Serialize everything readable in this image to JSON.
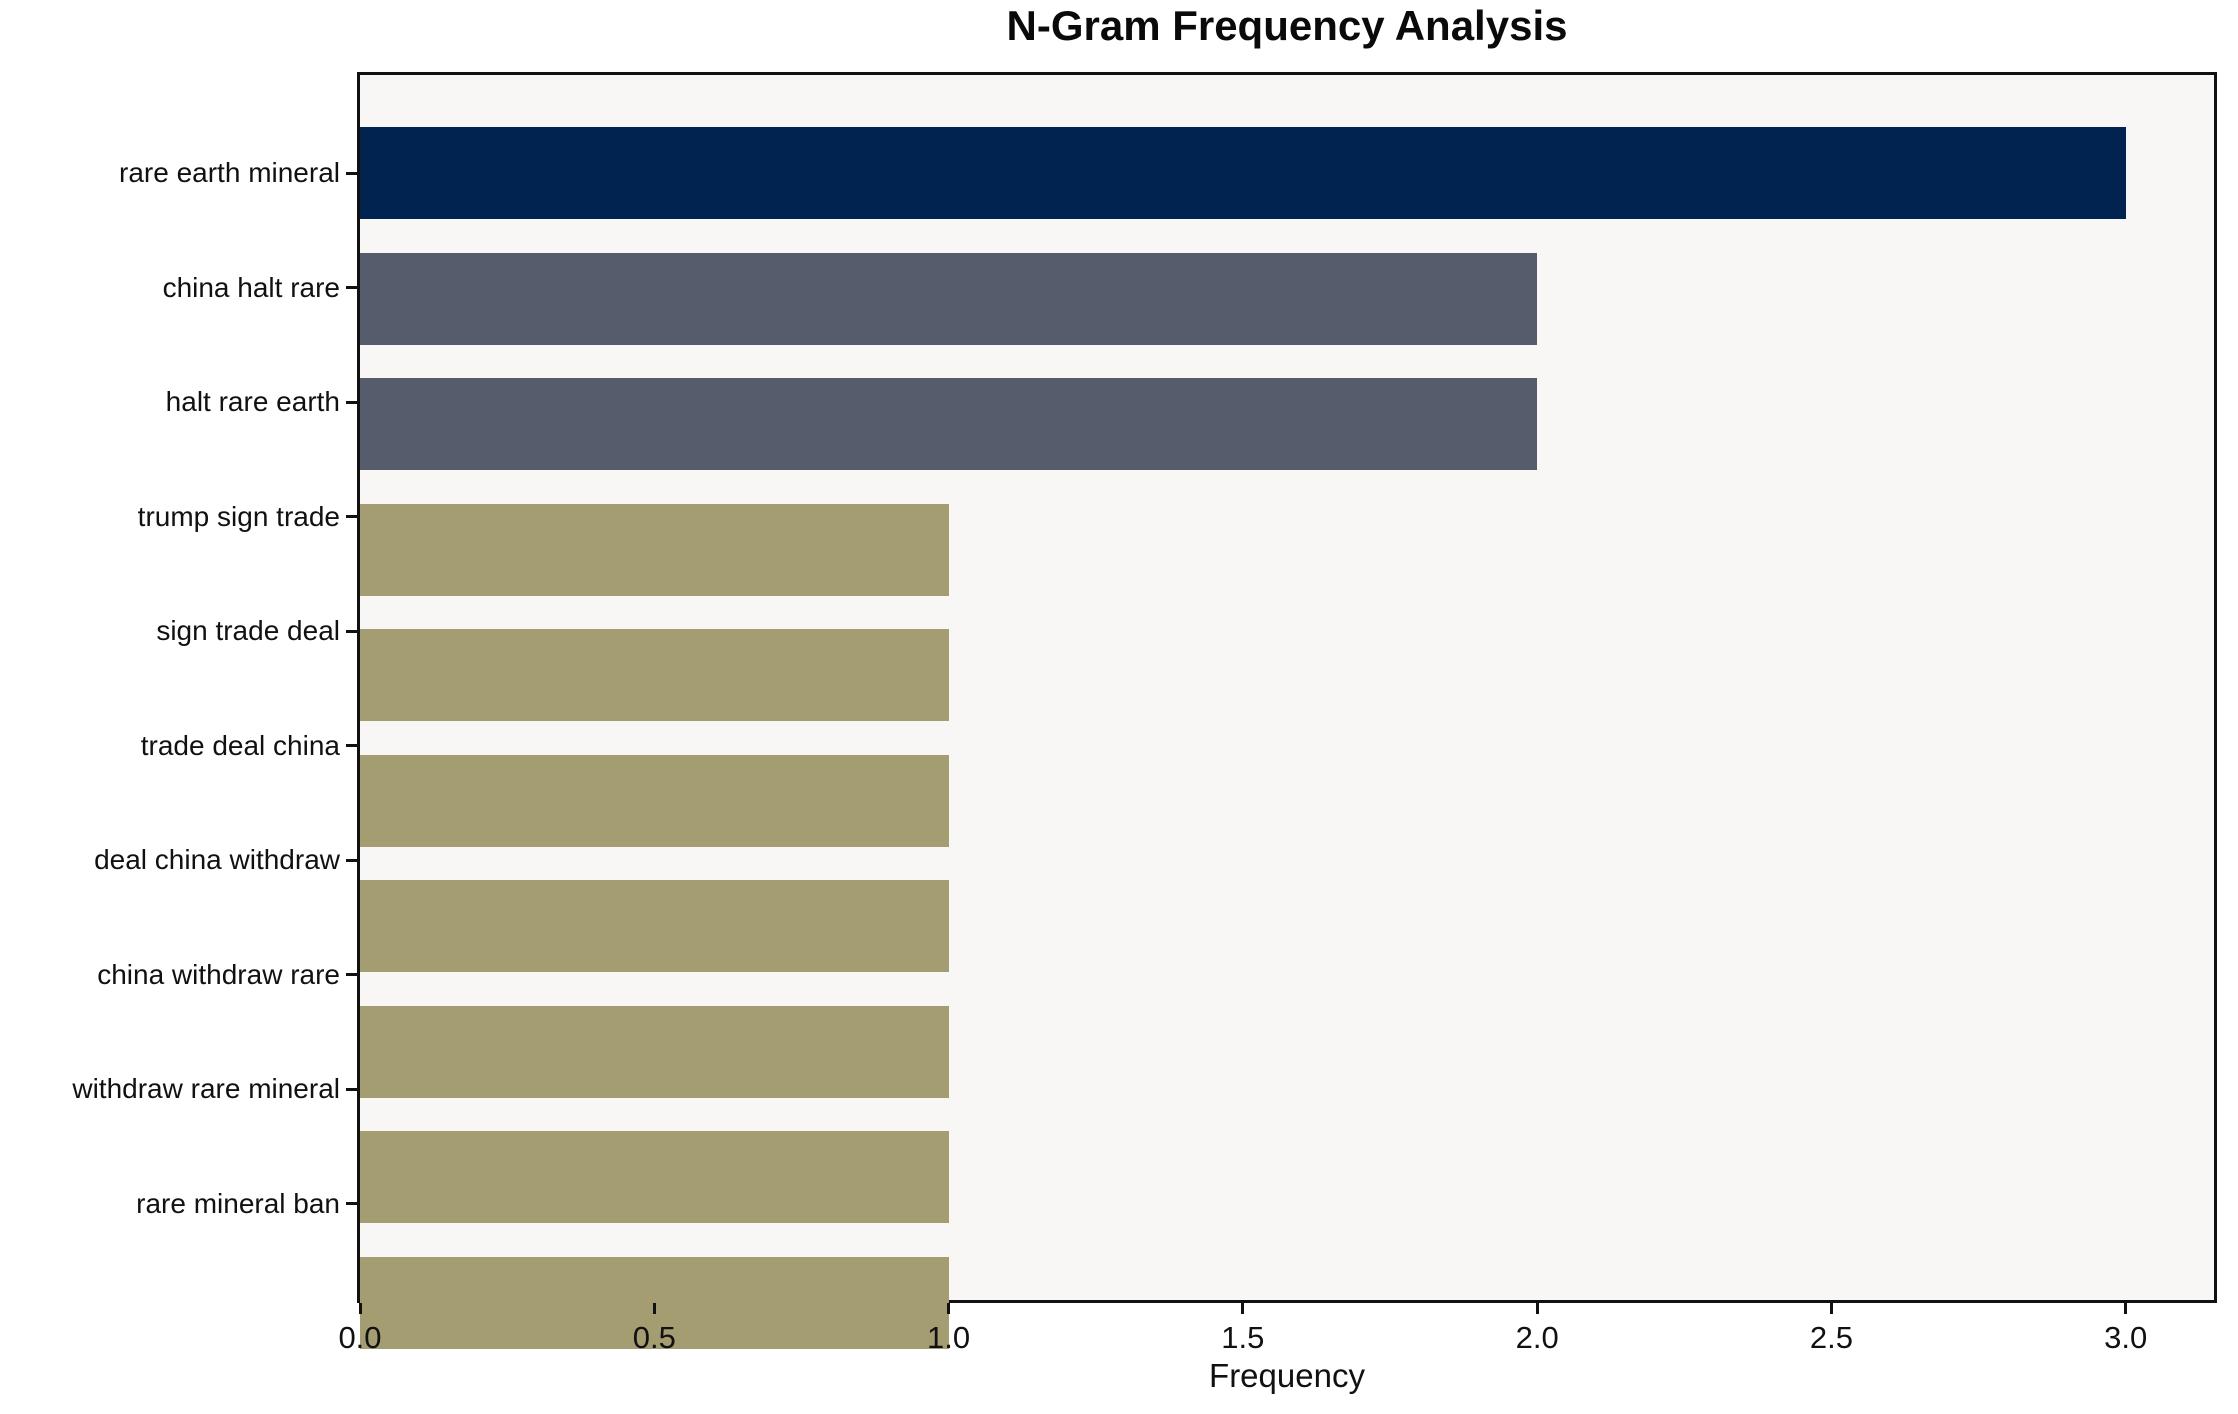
{
  "chart_data": {
    "type": "bar",
    "orientation": "horizontal",
    "title": "N-Gram Frequency Analysis",
    "xlabel": "Frequency",
    "ylabel": "",
    "categories": [
      "rare earth mineral",
      "china halt rare",
      "halt rare earth",
      "trump sign trade",
      "sign trade deal",
      "trade deal china",
      "deal china withdraw",
      "china withdraw rare",
      "withdraw rare mineral",
      "rare mineral ban"
    ],
    "values": [
      3,
      2,
      2,
      1,
      1,
      1,
      1,
      1,
      1,
      1
    ],
    "bar_colors": [
      "#00234F",
      "#565C6C",
      "#565C6C",
      "#A59D72",
      "#A59D72",
      "#A59D72",
      "#A59D72",
      "#A59D72",
      "#A59D72",
      "#A59D72"
    ],
    "xlim": [
      0,
      3.15
    ],
    "xticks": [
      0.0,
      0.5,
      1.0,
      1.5,
      2.0,
      2.5,
      3.0
    ],
    "xtick_labels": [
      "0.0",
      "0.5",
      "1.0",
      "1.5",
      "2.0",
      "2.5",
      "3.0"
    ],
    "grid": false,
    "legend": "none",
    "plot_background": "#F8F7F5",
    "figure_background": "#FFFFFF",
    "frame_color": "#111111"
  }
}
